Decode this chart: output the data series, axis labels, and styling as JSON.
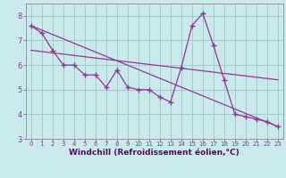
{
  "background_color": "#c8eaea",
  "grid_color": "#a0cccc",
  "line_color": "#993399",
  "marker": "+",
  "xlabel": "Windchill (Refroidissement éolien,°C)",
  "xlabel_color": "#660066",
  "xlim": [
    -0.5,
    23.5
  ],
  "ylim": [
    3.0,
    8.5
  ],
  "yticks": [
    3,
    4,
    5,
    6,
    7,
    8
  ],
  "xticks": [
    0,
    1,
    2,
    3,
    4,
    5,
    6,
    7,
    8,
    9,
    10,
    11,
    12,
    13,
    14,
    15,
    16,
    17,
    18,
    19,
    20,
    21,
    22,
    23
  ],
  "main_series": {
    "x": [
      0,
      1,
      2,
      3,
      4,
      5,
      6,
      7,
      8,
      9,
      10,
      11,
      12,
      13,
      14,
      15,
      16,
      17,
      18,
      19,
      20,
      21,
      22,
      23
    ],
    "y": [
      7.6,
      7.3,
      6.6,
      6.0,
      6.0,
      5.6,
      5.6,
      5.1,
      5.8,
      5.1,
      5.0,
      5.0,
      4.7,
      4.5,
      5.9,
      7.6,
      8.1,
      6.8,
      5.4,
      4.0,
      3.9,
      3.8,
      3.7,
      3.5
    ]
  },
  "trend1": {
    "x": [
      0,
      23
    ],
    "y": [
      7.6,
      3.5
    ]
  },
  "trend2": {
    "x": [
      0,
      23
    ],
    "y": [
      6.6,
      5.4
    ]
  }
}
